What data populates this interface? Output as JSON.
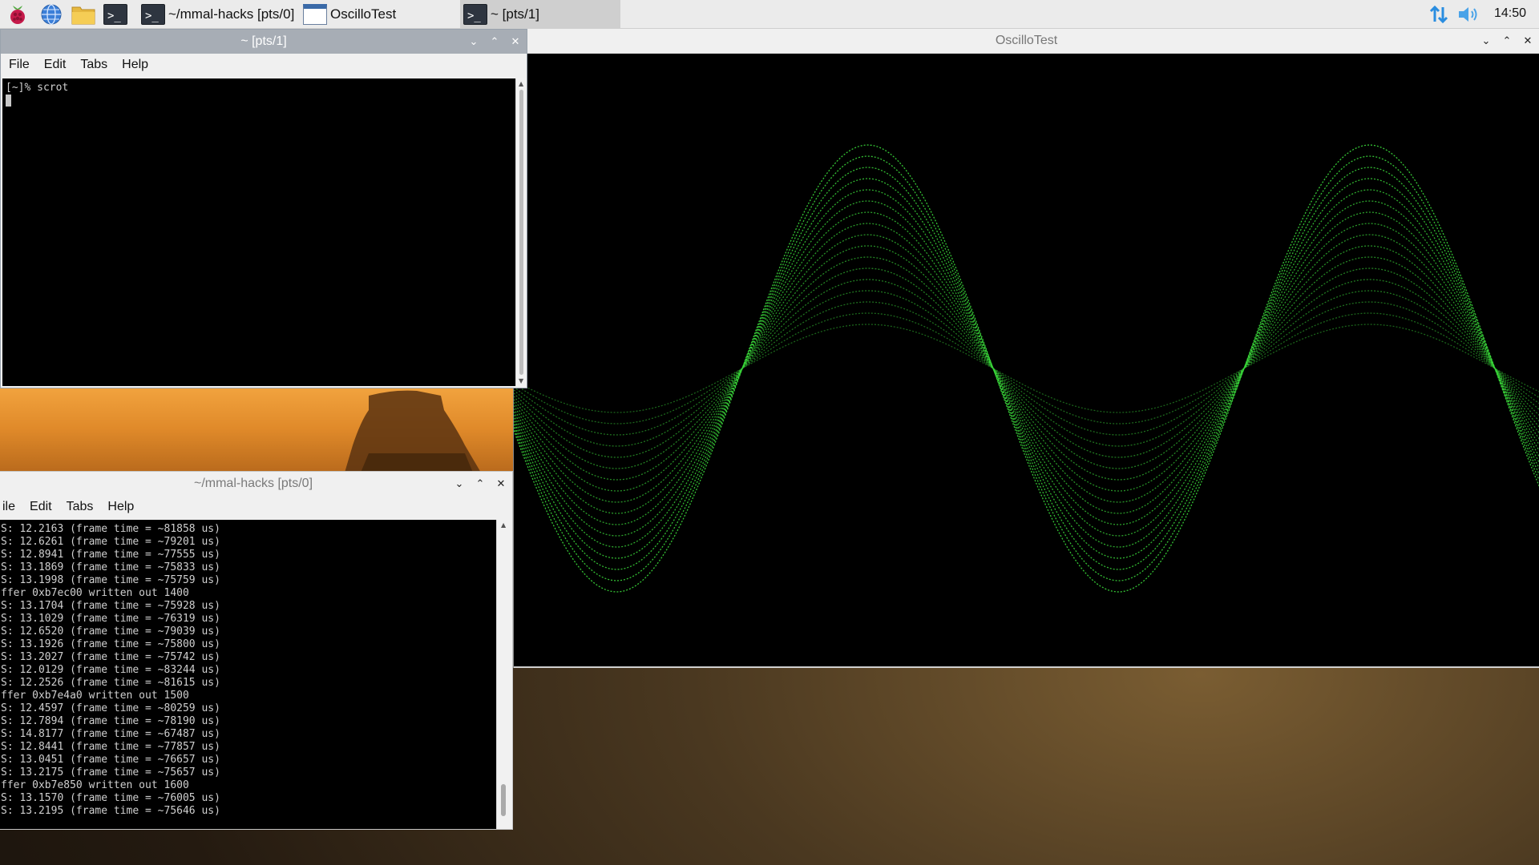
{
  "taskbar": {
    "launchers": [
      "raspberry-menu-icon",
      "web-browser-icon",
      "file-manager-icon",
      "terminal-icon"
    ],
    "tasks": [
      {
        "label": "~/mmal-hacks [pts/0]",
        "icon": "terminal-icon"
      },
      {
        "label": "OscilloTest",
        "icon": "window-icon"
      },
      {
        "label": "~ [pts/1]",
        "icon": "terminal-icon",
        "active": true
      }
    ],
    "tray": {
      "network_icon": "network-arrows-icon",
      "volume_icon": "speaker-icon",
      "clock": "14:50"
    }
  },
  "windows": {
    "term_pts1": {
      "title": "~ [pts/1]",
      "menu": [
        "File",
        "Edit",
        "Tabs",
        "Help"
      ],
      "lines": [
        "[~]% scrot"
      ]
    },
    "oscillo": {
      "title": "OscilloTest",
      "trace_color": "#3ad63a"
    },
    "term_pts0": {
      "title": "~/mmal-hacks [pts/0]",
      "menu": [
        "ile",
        "Edit",
        "Tabs",
        "Help"
      ],
      "lines": [
        "S: 12.2163 (frame time = ~81858 us)",
        "S: 12.6261 (frame time = ~79201 us)",
        "S: 12.8941 (frame time = ~77555 us)",
        "S: 13.1869 (frame time = ~75833 us)",
        "S: 13.1998 (frame time = ~75759 us)",
        "ffer 0xb7ec00 written out 1400",
        "S: 13.1704 (frame time = ~75928 us)",
        "S: 13.1029 (frame time = ~76319 us)",
        "S: 12.6520 (frame time = ~79039 us)",
        "S: 13.1926 (frame time = ~75800 us)",
        "S: 13.2027 (frame time = ~75742 us)",
        "S: 12.0129 (frame time = ~83244 us)",
        "S: 12.2526 (frame time = ~81615 us)",
        "ffer 0xb7e4a0 written out 1500",
        "S: 12.4597 (frame time = ~80259 us)",
        "S: 12.7894 (frame time = ~78190 us)",
        "S: 14.8177 (frame time = ~67487 us)",
        "S: 12.8441 (frame time = ~77857 us)",
        "S: 13.0451 (frame time = ~76657 us)",
        "S: 13.2175 (frame time = ~75657 us)",
        "ffer 0xb7e850 written out 1600",
        "S: 13.1570 (frame time = ~76005 us)",
        "S: 13.2195 (frame time = ~75646 us)"
      ]
    }
  }
}
